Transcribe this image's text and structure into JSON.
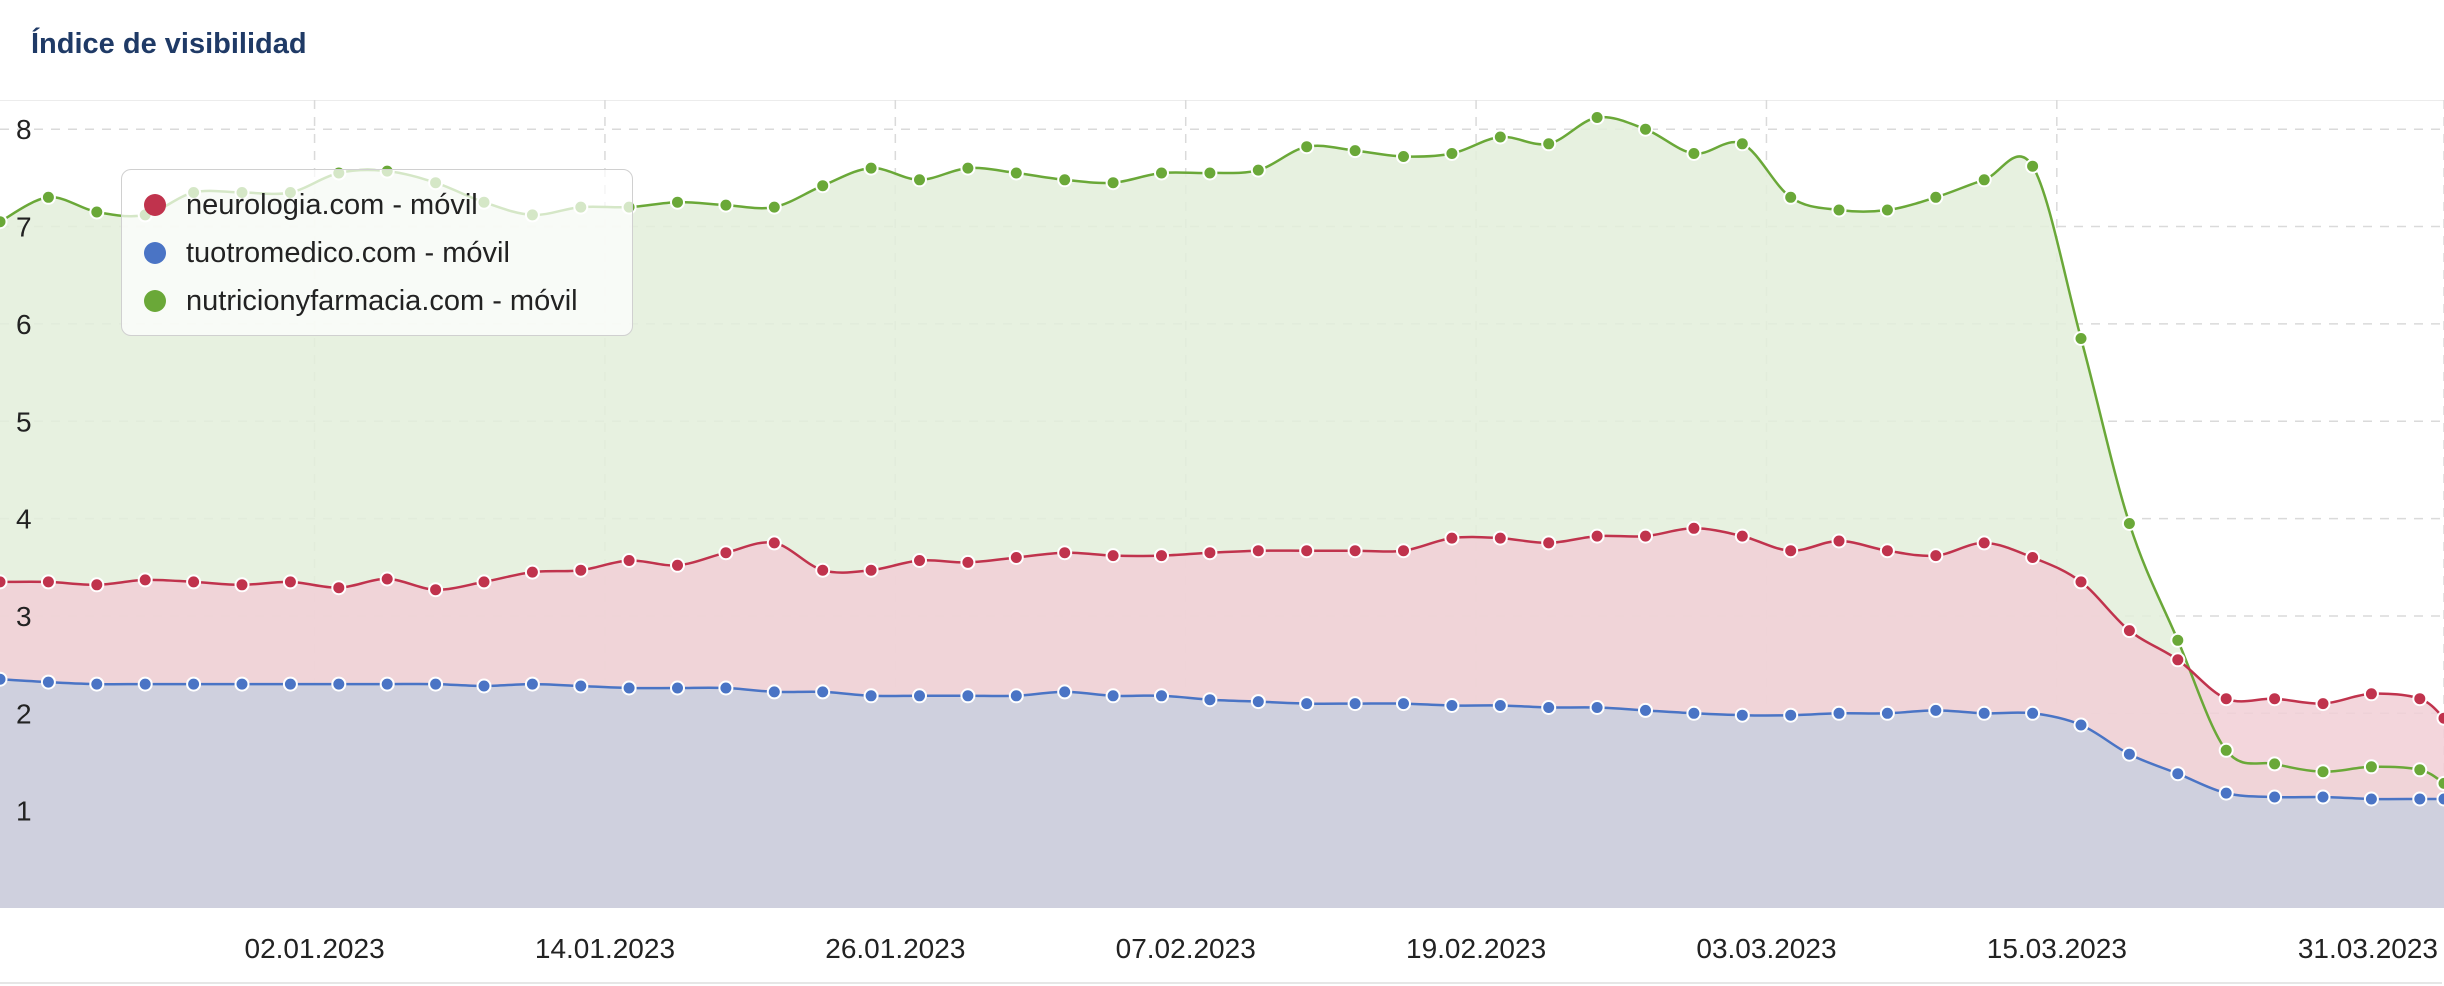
{
  "title": "Índice de visibilidad",
  "chart_data": {
    "type": "area",
    "title": "Índice de visibilidad",
    "xlabel": "",
    "ylabel": "",
    "ylim": [
      0,
      8.3
    ],
    "y_ticks": [
      "1",
      "2",
      "3",
      "4",
      "5",
      "6",
      "7",
      "8"
    ],
    "x_tick_labels": [
      "02.01.2023",
      "14.01.2023",
      "26.01.2023",
      "07.02.2023",
      "19.02.2023",
      "03.03.2023",
      "15.03.2023",
      "31.03.2023"
    ],
    "x_tick_dates": [
      "2023-01-02",
      "2023-01-14",
      "2023-01-26",
      "2023-02-07",
      "2023-02-19",
      "2023-03-03",
      "2023-03-15",
      "2023-03-31"
    ],
    "x_range": [
      "2022-12-20",
      "2023-03-31"
    ],
    "grid": true,
    "legend_position": "top-left",
    "x": [
      "2022-12-20",
      "2022-12-22",
      "2022-12-24",
      "2022-12-26",
      "2022-12-28",
      "2022-12-30",
      "2023-01-01",
      "2023-01-03",
      "2023-01-05",
      "2023-01-07",
      "2023-01-09",
      "2023-01-11",
      "2023-01-13",
      "2023-01-15",
      "2023-01-17",
      "2023-01-19",
      "2023-01-21",
      "2023-01-23",
      "2023-01-25",
      "2023-01-27",
      "2023-01-29",
      "2023-01-31",
      "2023-02-02",
      "2023-02-04",
      "2023-02-06",
      "2023-02-08",
      "2023-02-10",
      "2023-02-12",
      "2023-02-14",
      "2023-02-16",
      "2023-02-18",
      "2023-02-20",
      "2023-02-22",
      "2023-02-24",
      "2023-02-26",
      "2023-02-28",
      "2023-03-02",
      "2023-03-04",
      "2023-03-06",
      "2023-03-08",
      "2023-03-10",
      "2023-03-12",
      "2023-03-14",
      "2023-03-16",
      "2023-03-18",
      "2023-03-20",
      "2023-03-22",
      "2023-03-24",
      "2023-03-26",
      "2023-03-28",
      "2023-03-30",
      "2023-03-31"
    ],
    "series": [
      {
        "name": "neurologia.com - móvil",
        "color": "#c0334d",
        "fill": "#f1cfd6",
        "values": [
          3.35,
          3.35,
          3.32,
          3.37,
          3.35,
          3.32,
          3.35,
          3.29,
          3.38,
          3.27,
          3.35,
          3.45,
          3.47,
          3.57,
          3.52,
          3.65,
          3.75,
          3.47,
          3.47,
          3.57,
          3.55,
          3.6,
          3.65,
          3.62,
          3.62,
          3.65,
          3.67,
          3.67,
          3.67,
          3.67,
          3.8,
          3.8,
          3.75,
          3.82,
          3.82,
          3.9,
          3.82,
          3.67,
          3.77,
          3.67,
          3.62,
          3.75,
          3.6,
          3.35,
          2.85,
          2.55,
          2.15,
          2.15,
          2.1,
          2.2,
          2.15,
          1.95
        ]
      },
      {
        "name": "tuotromedico.com - móvil",
        "color": "#4a74c5",
        "fill": "#c4cfe0",
        "values": [
          2.35,
          2.32,
          2.3,
          2.3,
          2.3,
          2.3,
          2.3,
          2.3,
          2.3,
          2.3,
          2.28,
          2.3,
          2.28,
          2.26,
          2.26,
          2.26,
          2.22,
          2.22,
          2.18,
          2.18,
          2.18,
          2.18,
          2.22,
          2.18,
          2.18,
          2.14,
          2.12,
          2.1,
          2.1,
          2.1,
          2.08,
          2.08,
          2.06,
          2.06,
          2.03,
          2.0,
          1.98,
          1.98,
          2.0,
          2.0,
          2.03,
          2.0,
          2.0,
          1.88,
          1.58,
          1.38,
          1.18,
          1.14,
          1.14,
          1.12,
          1.12,
          1.12
        ]
      },
      {
        "name": "nutricionyfarmacia.com - móvil",
        "color": "#6aa838",
        "fill": "#e3eedb",
        "values": [
          7.05,
          7.3,
          7.15,
          7.12,
          7.35,
          7.35,
          7.35,
          7.55,
          7.57,
          7.45,
          7.25,
          7.12,
          7.2,
          7.2,
          7.25,
          7.22,
          7.2,
          7.42,
          7.6,
          7.48,
          7.6,
          7.55,
          7.48,
          7.45,
          7.55,
          7.55,
          7.58,
          7.82,
          7.78,
          7.72,
          7.75,
          7.92,
          7.85,
          8.12,
          8.0,
          7.75,
          7.85,
          7.3,
          7.17,
          7.17,
          7.3,
          7.48,
          7.62,
          5.85,
          3.95,
          2.75,
          1.62,
          1.48,
          1.4,
          1.45,
          1.42,
          1.28
        ]
      }
    ]
  }
}
